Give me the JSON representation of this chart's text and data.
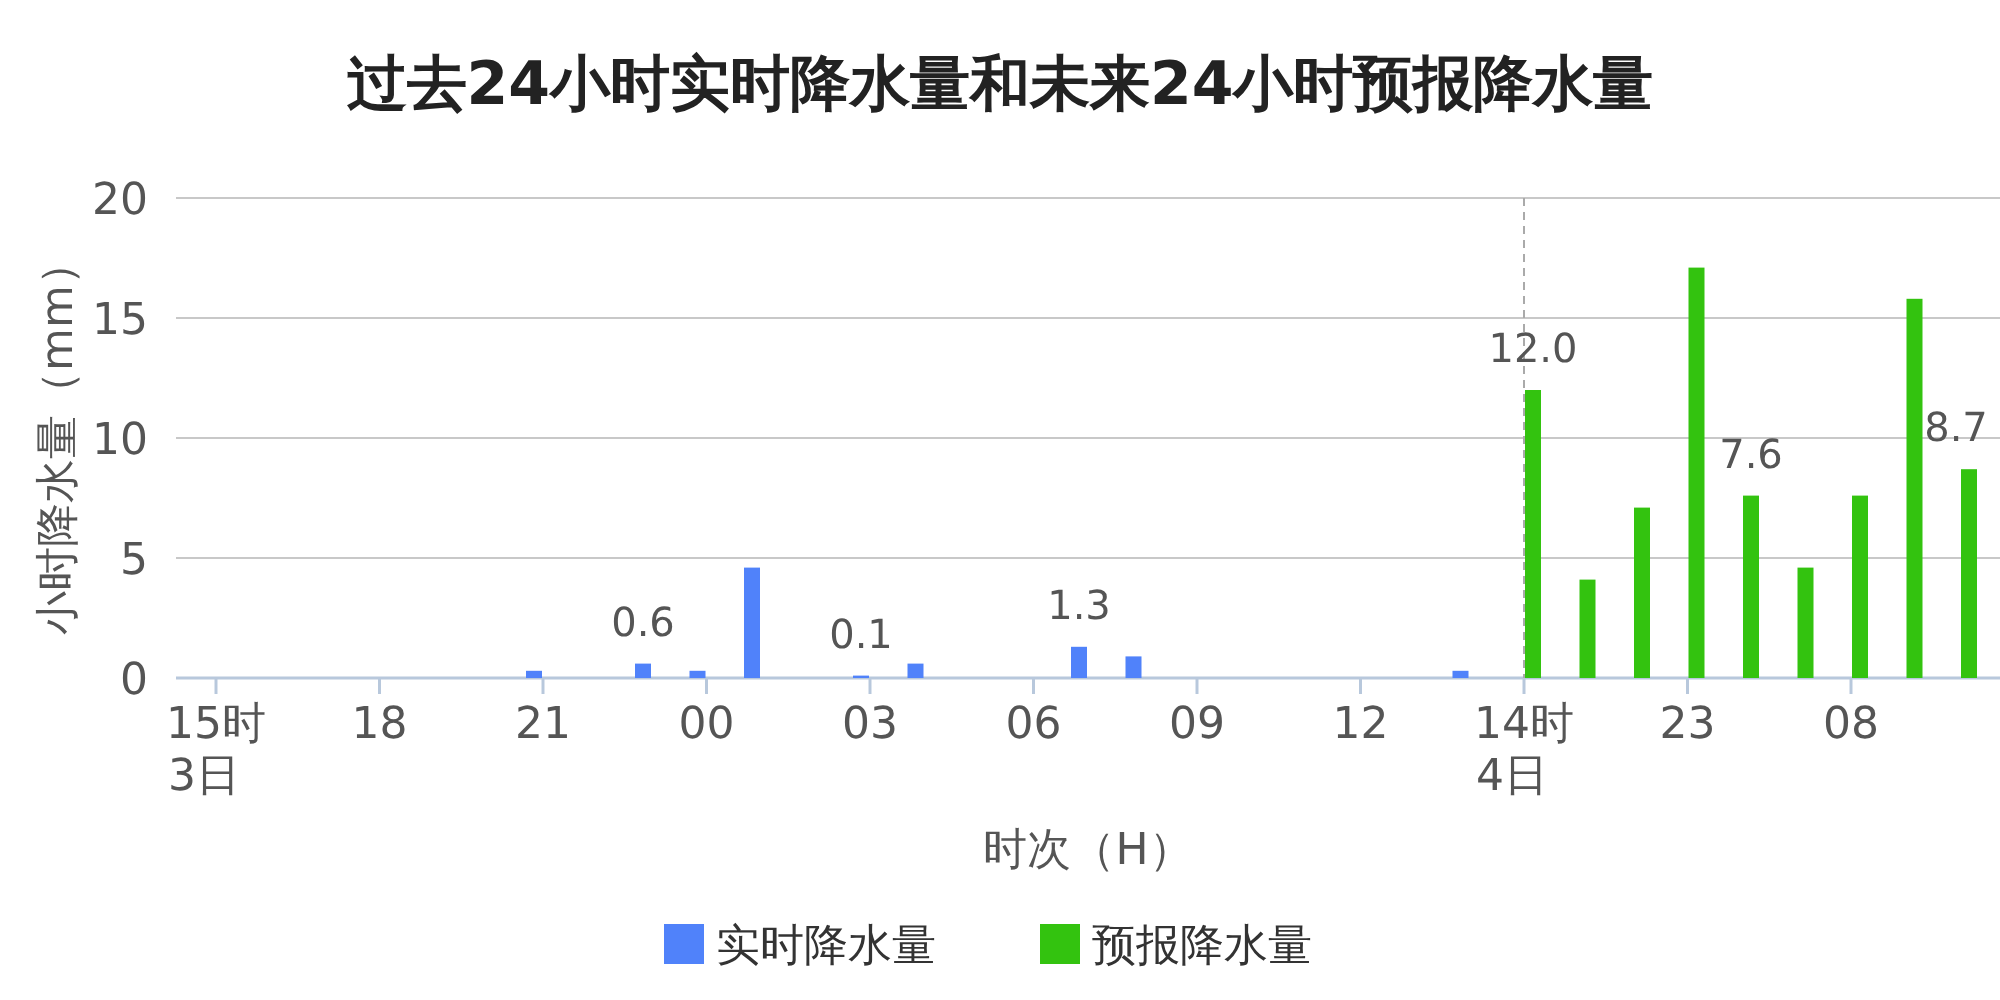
{
  "chart_data": {
    "type": "bar",
    "title": "过去24小时实时降水量和未来24小时预报降水量",
    "xlabel": "时次（H）",
    "ylabel": "小时降水量（mm）",
    "categories": [
      "15时\n3日",
      null,
      null,
      "18",
      null,
      null,
      "21",
      null,
      null,
      "00",
      null,
      null,
      "03",
      null,
      null,
      "06",
      null,
      null,
      "09",
      null,
      null,
      "12",
      null,
      null,
      "14时\n4日",
      null,
      null,
      "23",
      null,
      null,
      "08",
      null,
      null
    ],
    "series": [
      {
        "name": "实时降水量",
        "color": "#5082fa",
        "values": [
          0,
          0,
          0,
          0,
          0,
          0,
          0.3,
          0,
          0.6,
          0.3,
          4.6,
          0,
          0.1,
          0.6,
          0,
          0,
          1.3,
          0.9,
          0,
          0,
          0,
          0,
          0,
          0.3,
          null,
          null,
          null,
          null,
          null,
          null,
          null,
          null,
          null
        ],
        "value_labels": [
          null,
          null,
          null,
          null,
          null,
          null,
          null,
          null,
          "0.6",
          null,
          null,
          null,
          "0.1",
          null,
          null,
          null,
          "1.3",
          null,
          null,
          null,
          null,
          null,
          null,
          null,
          null,
          null,
          null,
          null,
          null,
          null,
          null,
          null,
          null
        ]
      },
      {
        "name": "预报降水量",
        "color": "#33c30f",
        "values": [
          null,
          null,
          null,
          null,
          null,
          null,
          null,
          null,
          null,
          null,
          null,
          null,
          null,
          null,
          null,
          null,
          null,
          null,
          null,
          null,
          null,
          null,
          null,
          null,
          12.0,
          4.1,
          7.1,
          17.1,
          7.6,
          4.6,
          7.6,
          15.8,
          8.7
        ],
        "value_labels": [
          null,
          null,
          null,
          null,
          null,
          null,
          null,
          null,
          null,
          null,
          null,
          null,
          null,
          null,
          null,
          null,
          null,
          null,
          null,
          null,
          null,
          null,
          null,
          null,
          "12.0",
          null,
          null,
          null,
          "7.6",
          null,
          null,
          null,
          "8.7"
        ]
      }
    ],
    "ylim": [
      0,
      20
    ],
    "yticks": [
      0,
      5,
      10,
      15,
      20
    ],
    "grid": "y",
    "legend": "bottom",
    "ref_lines": [
      {
        "axis": "x",
        "value": "14时\n4日",
        "color": "#aaaaaa",
        "line_style": "dashed"
      }
    ]
  }
}
